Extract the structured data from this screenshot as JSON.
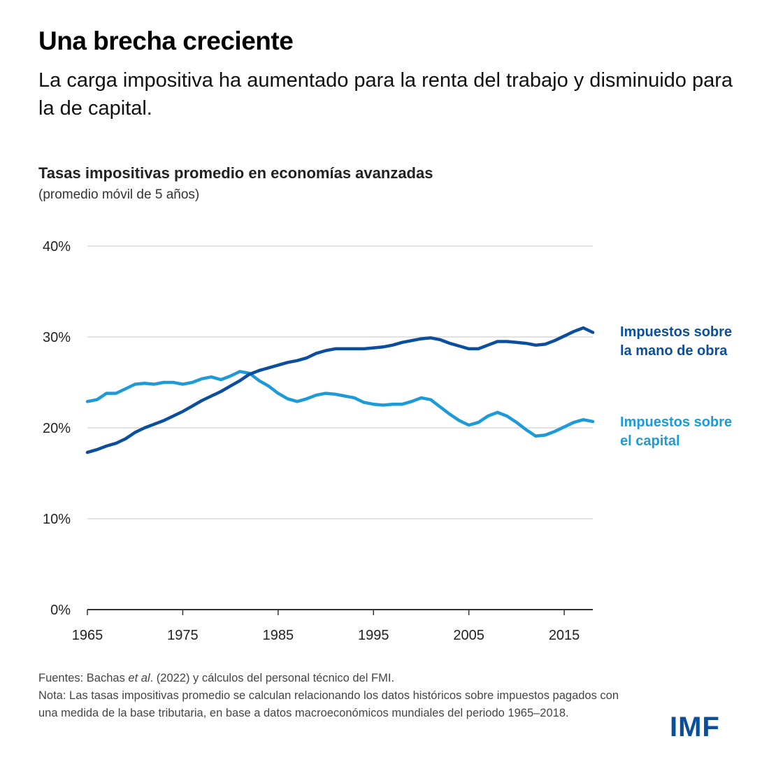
{
  "header": {
    "title": "Una brecha creciente",
    "subtitle": "La carga impositiva ha aumentado para la renta del trabajo y disminuido para la de capital."
  },
  "chart_data": {
    "type": "line",
    "title": "Tasas impositivas promedio en economías avanzadas",
    "subtitle": "(promedio móvil de 5 años)",
    "xlabel": "",
    "ylabel": "",
    "ylim": [
      0,
      40
    ],
    "xlim": [
      1965,
      2018
    ],
    "yticks": [
      0,
      10,
      20,
      30,
      40
    ],
    "ytick_labels": [
      "0%",
      "10%",
      "20%",
      "30%",
      "40%"
    ],
    "xticks": [
      1965,
      1975,
      1985,
      1995,
      2005,
      2015
    ],
    "xtick_labels": [
      "1965",
      "1975",
      "1985",
      "1995",
      "2005",
      "2015"
    ],
    "grid": true,
    "legend": "right",
    "series": [
      {
        "name": "Impuestos sobre la mano de obra",
        "label_lines": [
          "Impuestos sobre",
          "la mano de obra"
        ],
        "color": "#0b4f9c",
        "x": [
          1965,
          1966,
          1967,
          1968,
          1969,
          1970,
          1971,
          1972,
          1973,
          1974,
          1975,
          1976,
          1977,
          1978,
          1979,
          1980,
          1981,
          1982,
          1983,
          1984,
          1985,
          1986,
          1987,
          1988,
          1989,
          1990,
          1991,
          1992,
          1993,
          1994,
          1995,
          1996,
          1997,
          1998,
          1999,
          2000,
          2001,
          2002,
          2003,
          2004,
          2005,
          2006,
          2007,
          2008,
          2009,
          2010,
          2011,
          2012,
          2013,
          2014,
          2015,
          2016,
          2017,
          2018
        ],
        "values": [
          17.3,
          17.6,
          18.0,
          18.3,
          18.8,
          19.5,
          20.0,
          20.4,
          20.8,
          21.3,
          21.8,
          22.4,
          23.0,
          23.5,
          24.0,
          24.6,
          25.2,
          25.9,
          26.3,
          26.6,
          26.9,
          27.2,
          27.4,
          27.7,
          28.2,
          28.5,
          28.7,
          28.7,
          28.7,
          28.7,
          28.8,
          28.9,
          29.1,
          29.4,
          29.6,
          29.8,
          29.9,
          29.7,
          29.3,
          29.0,
          28.7,
          28.7,
          29.1,
          29.5,
          29.5,
          29.4,
          29.3,
          29.1,
          29.2,
          29.6,
          30.1,
          30.6,
          31.0,
          30.5
        ]
      },
      {
        "name": "Impuestos sobre el capital",
        "label_lines": [
          "Impuestos sobre",
          "el capital"
        ],
        "color": "#1e9ad8",
        "x": [
          1965,
          1966,
          1967,
          1968,
          1969,
          1970,
          1971,
          1972,
          1973,
          1974,
          1975,
          1976,
          1977,
          1978,
          1979,
          1980,
          1981,
          1982,
          1983,
          1984,
          1985,
          1986,
          1987,
          1988,
          1989,
          1990,
          1991,
          1992,
          1993,
          1994,
          1995,
          1996,
          1997,
          1998,
          1999,
          2000,
          2001,
          2002,
          2003,
          2004,
          2005,
          2006,
          2007,
          2008,
          2009,
          2010,
          2011,
          2012,
          2013,
          2014,
          2015,
          2016,
          2017,
          2018
        ],
        "values": [
          22.9,
          23.1,
          23.8,
          23.8,
          24.3,
          24.8,
          24.9,
          24.8,
          25.0,
          25.0,
          24.8,
          25.0,
          25.4,
          25.6,
          25.3,
          25.7,
          26.2,
          26.0,
          25.2,
          24.6,
          23.8,
          23.2,
          22.9,
          23.2,
          23.6,
          23.8,
          23.7,
          23.5,
          23.3,
          22.8,
          22.6,
          22.5,
          22.6,
          22.6,
          22.9,
          23.3,
          23.1,
          22.3,
          21.5,
          20.8,
          20.3,
          20.6,
          21.3,
          21.7,
          21.3,
          20.6,
          19.8,
          19.1,
          19.2,
          19.6,
          20.1,
          20.6,
          20.9,
          20.7
        ]
      }
    ]
  },
  "footer": {
    "sources_prefix": "Fuentes: Bachas ",
    "sources_italic": "et al",
    "sources_suffix": ". (2022) y cálculos del personal técnico del FMI.",
    "note": "Nota: Las tasas impositivas promedio se calculan relacionando los datos históricos sobre impuestos pagados con una medida de la base tributaria, en base a datos macroeconómicos mundiales del periodo 1965–2018.",
    "logo": "IMF"
  }
}
